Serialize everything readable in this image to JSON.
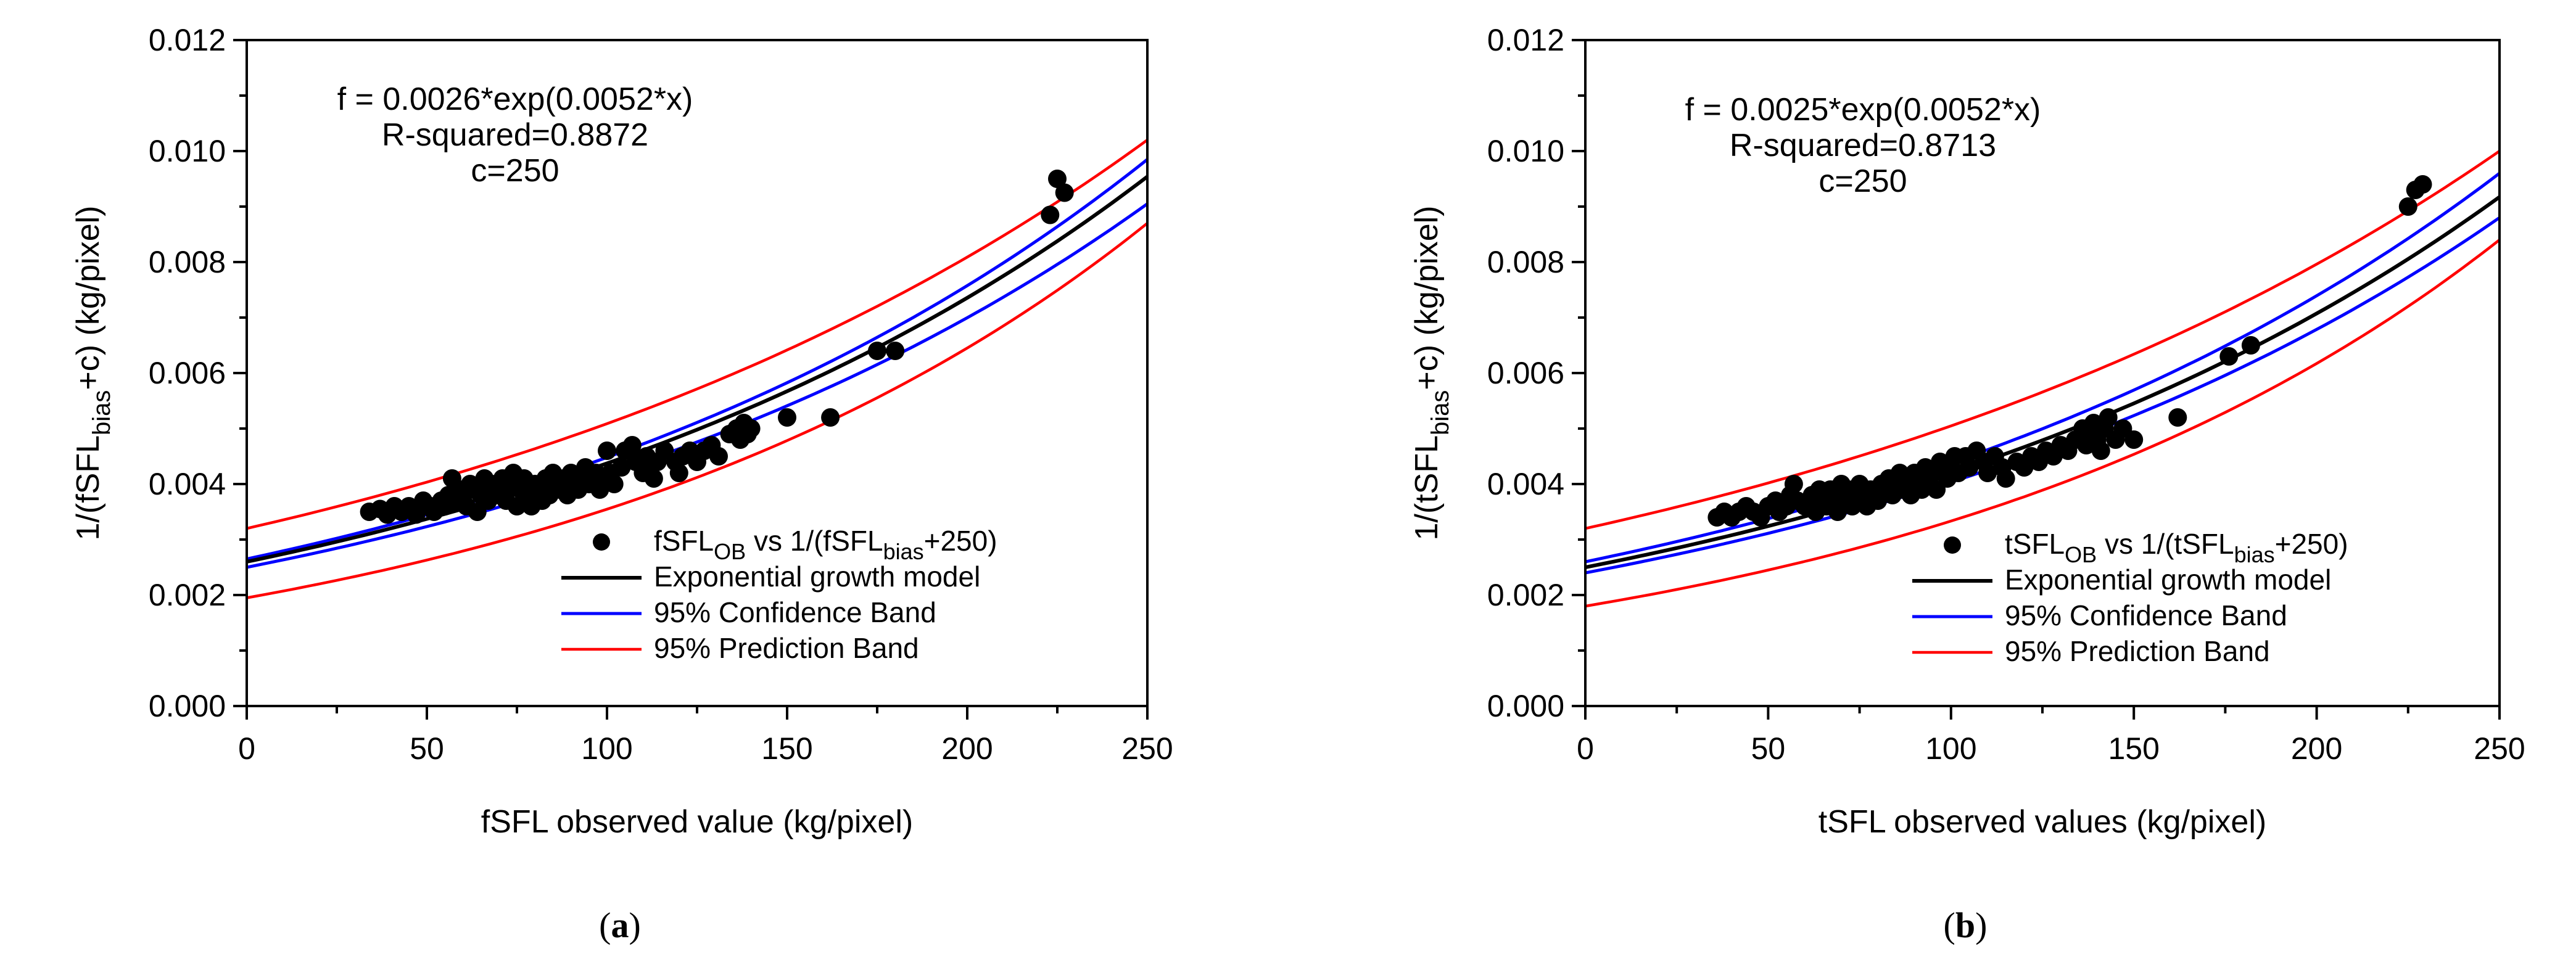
{
  "chart_data": [
    {
      "type": "scatter",
      "panel_label": {
        "open": "(",
        "letter": "a",
        "close": ")"
      },
      "xlabel": "fSFL observed value (kg/pixel)",
      "ylabel": {
        "prefix": "1/(fSFL",
        "sub": "bias",
        "suffix": "+c) (kg/pixel)"
      },
      "xlim": [
        0,
        250
      ],
      "ylim": [
        0,
        0.012
      ],
      "x_ticks": [
        "0",
        "50",
        "100",
        "150",
        "200",
        "250"
      ],
      "y_ticks": [
        "0.000",
        "0.002",
        "0.004",
        "0.006",
        "0.008",
        "0.010",
        "0.012"
      ],
      "equation": [
        "f = 0.0026*exp(0.0052*x)",
        "R-squared=0.8872",
        "c=250"
      ],
      "model": {
        "a": 0.0026,
        "b": 0.0052,
        "conf_low": [
          0.0025,
          0.00905
        ],
        "conf_high": [
          0.00265,
          0.00985
        ],
        "pred_low": [
          0.00195,
          0.0087
        ],
        "pred_high": [
          0.0032,
          0.0102
        ]
      },
      "legend": {
        "position": "bottom-right",
        "entries": [
          {
            "kind": "marker",
            "prefix": "fSFL",
            "sub1": "OB",
            "mid": " vs 1/(fSFL",
            "sub2": "bias",
            "suffix": "+250)"
          },
          {
            "kind": "line",
            "color": "#000000",
            "label": "Exponential growth model"
          },
          {
            "kind": "line",
            "color": "#0000ff",
            "label": "95% Confidence Band"
          },
          {
            "kind": "line",
            "color": "#ff0000",
            "label": "95% Prediction Band"
          }
        ]
      },
      "points": [
        [
          34,
          0.0035
        ],
        [
          37,
          0.00355
        ],
        [
          39,
          0.00345
        ],
        [
          41,
          0.0036
        ],
        [
          43,
          0.0035
        ],
        [
          45,
          0.0036
        ],
        [
          47,
          0.00345
        ],
        [
          49,
          0.0037
        ],
        [
          51,
          0.0036
        ],
        [
          52,
          0.0035
        ],
        [
          54,
          0.0037
        ],
        [
          55,
          0.0036
        ],
        [
          56,
          0.0038
        ],
        [
          57,
          0.0041
        ],
        [
          58,
          0.0037
        ],
        [
          59,
          0.0039
        ],
        [
          60,
          0.0038
        ],
        [
          61,
          0.0036
        ],
        [
          62,
          0.004
        ],
        [
          63,
          0.0039
        ],
        [
          64,
          0.0035
        ],
        [
          65,
          0.0038
        ],
        [
          66,
          0.0041
        ],
        [
          67,
          0.0037
        ],
        [
          68,
          0.004
        ],
        [
          69,
          0.0039
        ],
        [
          70,
          0.0038
        ],
        [
          71,
          0.0041
        ],
        [
          72,
          0.0037
        ],
        [
          73,
          0.004
        ],
        [
          74,
          0.0042
        ],
        [
          75,
          0.0036
        ],
        [
          76,
          0.0039
        ],
        [
          77,
          0.0041
        ],
        [
          78,
          0.0038
        ],
        [
          79,
          0.0036
        ],
        [
          80,
          0.004
        ],
        [
          81,
          0.0039
        ],
        [
          82,
          0.0037
        ],
        [
          83,
          0.0041
        ],
        [
          84,
          0.0038
        ],
        [
          85,
          0.0042
        ],
        [
          86,
          0.004
        ],
        [
          87,
          0.0039
        ],
        [
          88,
          0.0041
        ],
        [
          89,
          0.0038
        ],
        [
          90,
          0.0042
        ],
        [
          91,
          0.004
        ],
        [
          92,
          0.0039
        ],
        [
          93,
          0.0041
        ],
        [
          94,
          0.0043
        ],
        [
          95,
          0.004
        ],
        [
          96,
          0.0041
        ],
        [
          97,
          0.0042
        ],
        [
          98,
          0.0039
        ],
        [
          99,
          0.0041
        ],
        [
          100,
          0.0046
        ],
        [
          101,
          0.0042
        ],
        [
          102,
          0.004
        ],
        [
          104,
          0.0043
        ],
        [
          105,
          0.0046
        ],
        [
          107,
          0.0047
        ],
        [
          108,
          0.0044
        ],
        [
          110,
          0.0042
        ],
        [
          111,
          0.0045
        ],
        [
          112,
          0.0043
        ],
        [
          113,
          0.0041
        ],
        [
          114,
          0.0044
        ],
        [
          116,
          0.0046
        ],
        [
          119,
          0.0044
        ],
        [
          120,
          0.0042
        ],
        [
          121,
          0.0045
        ],
        [
          123,
          0.0046
        ],
        [
          125,
          0.0044
        ],
        [
          127,
          0.0046
        ],
        [
          129,
          0.0047
        ],
        [
          131,
          0.0045
        ],
        [
          134,
          0.0049
        ],
        [
          136,
          0.005
        ],
        [
          137,
          0.0048
        ],
        [
          138,
          0.0051
        ],
        [
          139,
          0.0049
        ],
        [
          140,
          0.005
        ],
        [
          150,
          0.0052
        ],
        [
          162,
          0.0052
        ],
        [
          175,
          0.0064
        ],
        [
          180,
          0.0064
        ],
        [
          223,
          0.00885
        ],
        [
          225,
          0.0095
        ],
        [
          227,
          0.00925
        ]
      ]
    },
    {
      "type": "scatter",
      "panel_label": {
        "open": "(",
        "letter": "b",
        "close": ")"
      },
      "xlabel": "tSFL observed values (kg/pixel)",
      "ylabel": {
        "prefix": "1/(tSFL",
        "sub": "bias",
        "suffix": "+c) (kg/pixel)"
      },
      "xlim": [
        0,
        250
      ],
      "ylim": [
        0,
        0.012
      ],
      "x_ticks": [
        "0",
        "50",
        "100",
        "150",
        "200",
        "250"
      ],
      "y_ticks": [
        "0.000",
        "0.002",
        "0.004",
        "0.006",
        "0.008",
        "0.010",
        "0.012"
      ],
      "equation": [
        "f = 0.0025*exp(0.0052*x)",
        "R-squared=0.8713",
        "c=250"
      ],
      "model": {
        "a": 0.0025,
        "b": 0.0052,
        "conf_low": [
          0.0024,
          0.0088
        ],
        "conf_high": [
          0.0026,
          0.0096
        ],
        "pred_low": [
          0.0018,
          0.0084
        ],
        "pred_high": [
          0.0032,
          0.01
        ]
      },
      "legend": {
        "position": "bottom-right",
        "entries": [
          {
            "kind": "marker",
            "prefix": "tSFL",
            "sub1": "OB",
            "mid": " vs 1/(tSFL",
            "sub2": "bias",
            "suffix": "+250)"
          },
          {
            "kind": "line",
            "color": "#000000",
            "label": "Exponential growth model"
          },
          {
            "kind": "line",
            "color": "#0000ff",
            "label": "95% Confidence Band"
          },
          {
            "kind": "line",
            "color": "#ff0000",
            "label": "95% Prediction Band"
          }
        ]
      },
      "points": [
        [
          36,
          0.0034
        ],
        [
          38,
          0.0035
        ],
        [
          40,
          0.0034
        ],
        [
          42,
          0.0035
        ],
        [
          44,
          0.0036
        ],
        [
          46,
          0.0035
        ],
        [
          48,
          0.0034
        ],
        [
          50,
          0.0036
        ],
        [
          52,
          0.0037
        ],
        [
          53,
          0.0035
        ],
        [
          55,
          0.0036
        ],
        [
          56,
          0.0038
        ],
        [
          57,
          0.004
        ],
        [
          58,
          0.0037
        ],
        [
          60,
          0.0036
        ],
        [
          62,
          0.0038
        ],
        [
          63,
          0.0035
        ],
        [
          64,
          0.0039
        ],
        [
          65,
          0.0037
        ],
        [
          66,
          0.0036
        ],
        [
          67,
          0.0039
        ],
        [
          68,
          0.0038
        ],
        [
          69,
          0.0035
        ],
        [
          70,
          0.004
        ],
        [
          71,
          0.0037
        ],
        [
          72,
          0.0039
        ],
        [
          73,
          0.0036
        ],
        [
          74,
          0.0038
        ],
        [
          75,
          0.004
        ],
        [
          76,
          0.0037
        ],
        [
          77,
          0.0036
        ],
        [
          78,
          0.0039
        ],
        [
          79,
          0.0038
        ],
        [
          80,
          0.0037
        ],
        [
          81,
          0.004
        ],
        [
          82,
          0.0039
        ],
        [
          83,
          0.0041
        ],
        [
          84,
          0.0038
        ],
        [
          85,
          0.004
        ],
        [
          86,
          0.0042
        ],
        [
          87,
          0.0039
        ],
        [
          88,
          0.0041
        ],
        [
          89,
          0.0038
        ],
        [
          90,
          0.0042
        ],
        [
          91,
          0.004
        ],
        [
          92,
          0.0039
        ],
        [
          93,
          0.0043
        ],
        [
          94,
          0.0041
        ],
        [
          95,
          0.0042
        ],
        [
          96,
          0.0039
        ],
        [
          97,
          0.0044
        ],
        [
          98,
          0.0042
        ],
        [
          99,
          0.0041
        ],
        [
          100,
          0.0043
        ],
        [
          101,
          0.0045
        ],
        [
          102,
          0.0042
        ],
        [
          104,
          0.0045
        ],
        [
          105,
          0.0043
        ],
        [
          107,
          0.0046
        ],
        [
          109,
          0.0044
        ],
        [
          110,
          0.0042
        ],
        [
          112,
          0.0045
        ],
        [
          114,
          0.0043
        ],
        [
          115,
          0.0041
        ],
        [
          118,
          0.0044
        ],
        [
          120,
          0.0043
        ],
        [
          122,
          0.0045
        ],
        [
          124,
          0.0044
        ],
        [
          126,
          0.0046
        ],
        [
          128,
          0.0045
        ],
        [
          130,
          0.0047
        ],
        [
          132,
          0.0046
        ],
        [
          134,
          0.0048
        ],
        [
          136,
          0.005
        ],
        [
          137,
          0.0047
        ],
        [
          138,
          0.0049
        ],
        [
          139,
          0.0051
        ],
        [
          140,
          0.0048
        ],
        [
          141,
          0.0046
        ],
        [
          142,
          0.005
        ],
        [
          143,
          0.0052
        ],
        [
          145,
          0.0048
        ],
        [
          147,
          0.005
        ],
        [
          150,
          0.0048
        ],
        [
          162,
          0.0052
        ],
        [
          176,
          0.0063
        ],
        [
          182,
          0.0065
        ],
        [
          225,
          0.009
        ],
        [
          227,
          0.0093
        ],
        [
          229,
          0.0094
        ]
      ]
    }
  ]
}
